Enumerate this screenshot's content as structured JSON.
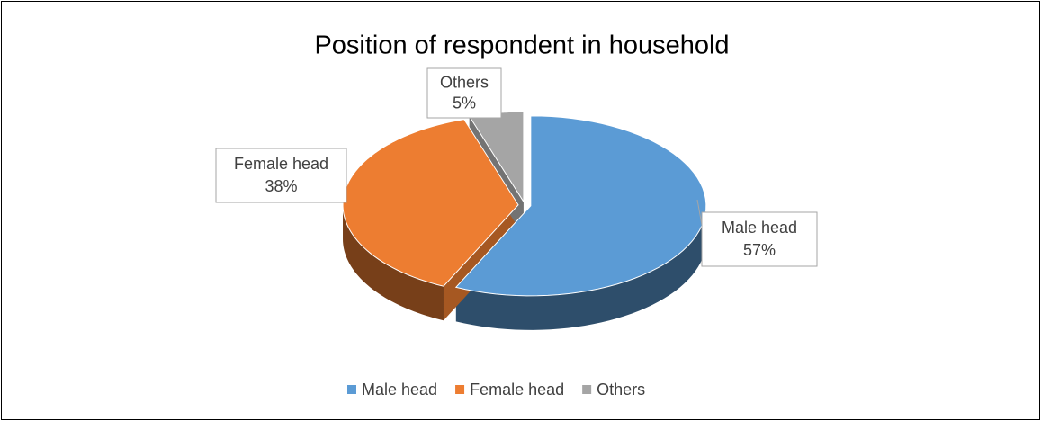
{
  "chart_data": {
    "type": "pie",
    "title": "Position of respondent in household",
    "categories": [
      "Male head",
      "Female head",
      "Others"
    ],
    "values": [
      57,
      38,
      5
    ],
    "value_labels": [
      "57%",
      "38%",
      "5%"
    ],
    "colors": [
      "#5b9bd5",
      "#ed7d31",
      "#a5a5a5"
    ],
    "legend": "bottom"
  }
}
